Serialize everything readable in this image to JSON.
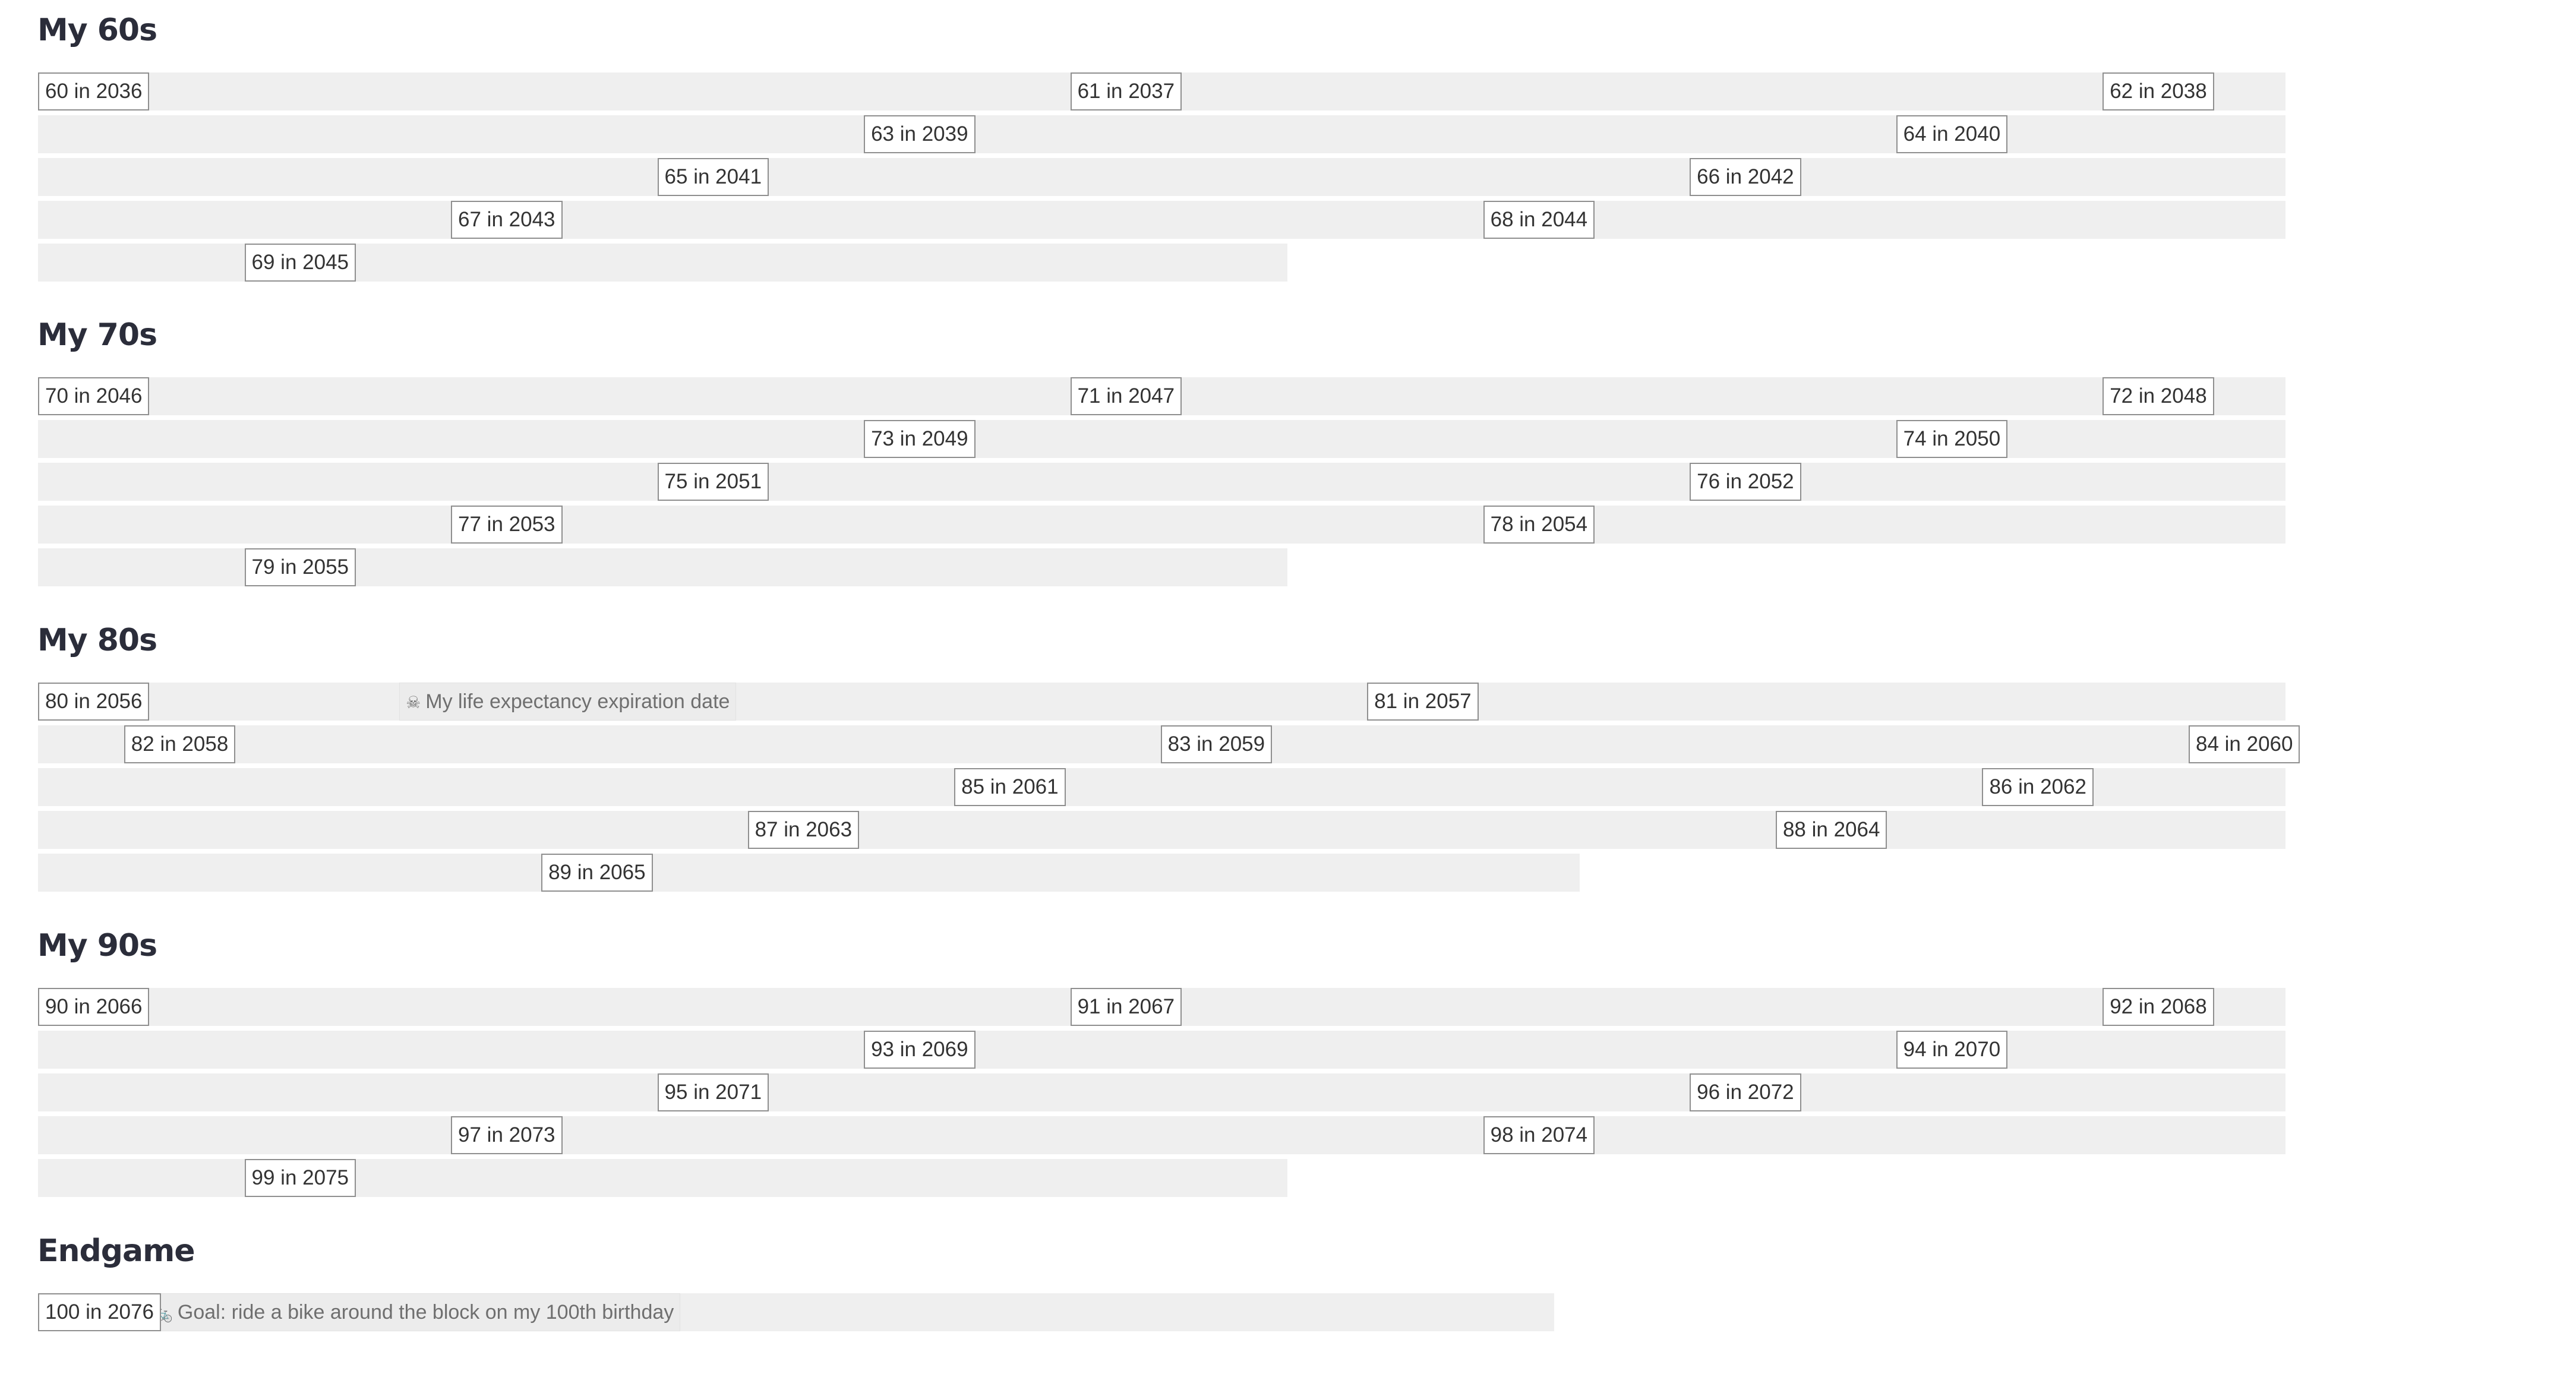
{
  "sections": [
    {
      "title": "My 60s",
      "rows": [
        {
          "length": 520,
          "birthdays": [
            {
              "label": "60 in 2036",
              "week": 0
            },
            {
              "label": "61 in 2037",
              "week": 240
            },
            {
              "label": "62 in 2038",
              "week": 480
            }
          ]
        },
        {
          "length": 520,
          "birthdays": [
            {
              "label": "63 in 2039",
              "week": 192
            },
            {
              "label": "64 in 2040",
              "week": 432
            }
          ]
        },
        {
          "length": 520,
          "birthdays": [
            {
              "label": "65 in 2041",
              "week": 144
            },
            {
              "label": "66 in 2042",
              "week": 384
            }
          ]
        },
        {
          "length": 520,
          "birthdays": [
            {
              "label": "67 in 2043",
              "week": 96
            },
            {
              "label": "68 in 2044",
              "week": 336
            }
          ]
        },
        {
          "length": 288,
          "birthdays": [
            {
              "label": "69 in 2045",
              "week": 48
            }
          ]
        }
      ]
    },
    {
      "title": "My 70s",
      "rows": [
        {
          "length": 520,
          "birthdays": [
            {
              "label": "70 in 2046",
              "week": 0
            },
            {
              "label": "71 in 2047",
              "week": 240
            },
            {
              "label": "72 in 2048",
              "week": 480
            }
          ]
        },
        {
          "length": 520,
          "birthdays": [
            {
              "label": "73 in 2049",
              "week": 192
            },
            {
              "label": "74 in 2050",
              "week": 432
            }
          ]
        },
        {
          "length": 520,
          "birthdays": [
            {
              "label": "75 in 2051",
              "week": 144
            },
            {
              "label": "76 in 2052",
              "week": 384
            }
          ]
        },
        {
          "length": 520,
          "birthdays": [
            {
              "label": "77 in 2053",
              "week": 96
            },
            {
              "label": "78 in 2054",
              "week": 336
            }
          ]
        },
        {
          "length": 288,
          "birthdays": [
            {
              "label": "79 in 2055",
              "week": 48
            }
          ]
        }
      ]
    },
    {
      "title": "My 80s",
      "rows": [
        {
          "length": 520,
          "birthdays": [
            {
              "label": "80 in 2056",
              "week": 0
            },
            {
              "label": "81 in 2057",
              "week": 309
            }
          ],
          "notes": [
            {
              "emoji": "☠",
              "text": "My life expectancy expiration date",
              "week": 84
            }
          ]
        },
        {
          "length": 520,
          "birthdays": [
            {
              "label": "82 in 2058",
              "week": 20
            },
            {
              "label": "83 in 2059",
              "week": 261
            },
            {
              "label": "84 in 2060",
              "week": 500
            }
          ]
        },
        {
          "length": 520,
          "birthdays": [
            {
              "label": "85 in 2061",
              "week": 213
            },
            {
              "label": "86 in 2062",
              "week": 452
            }
          ]
        },
        {
          "length": 520,
          "birthdays": [
            {
              "label": "87 in 2063",
              "week": 165
            },
            {
              "label": "88 in 2064",
              "week": 404
            }
          ]
        },
        {
          "length": 356,
          "birthdays": [
            {
              "label": "89 in 2065",
              "week": 117
            }
          ]
        }
      ]
    },
    {
      "title": "My 90s",
      "rows": [
        {
          "length": 520,
          "birthdays": [
            {
              "label": "90 in 2066",
              "week": 0
            },
            {
              "label": "91 in 2067",
              "week": 240
            },
            {
              "label": "92 in 2068",
              "week": 480
            }
          ]
        },
        {
          "length": 520,
          "birthdays": [
            {
              "label": "93 in 2069",
              "week": 192
            },
            {
              "label": "94 in 2070",
              "week": 432
            }
          ]
        },
        {
          "length": 520,
          "birthdays": [
            {
              "label": "95 in 2071",
              "week": 144
            },
            {
              "label": "96 in 2072",
              "week": 384
            }
          ]
        },
        {
          "length": 520,
          "birthdays": [
            {
              "label": "97 in 2073",
              "week": 96
            },
            {
              "label": "98 in 2074",
              "week": 336
            }
          ]
        },
        {
          "length": 288,
          "birthdays": [
            {
              "label": "99 in 2075",
              "week": 48
            }
          ]
        }
      ]
    },
    {
      "title": "Endgame",
      "rows": [
        {
          "length": 350,
          "birthdays": [
            {
              "label": "100 in 2076",
              "week": 0
            }
          ],
          "notes": [
            {
              "emoji": "🚲",
              "text": "Goal: ride a bike around the block on my 100th birthday",
              "week": 25
            }
          ]
        }
      ]
    }
  ]
}
